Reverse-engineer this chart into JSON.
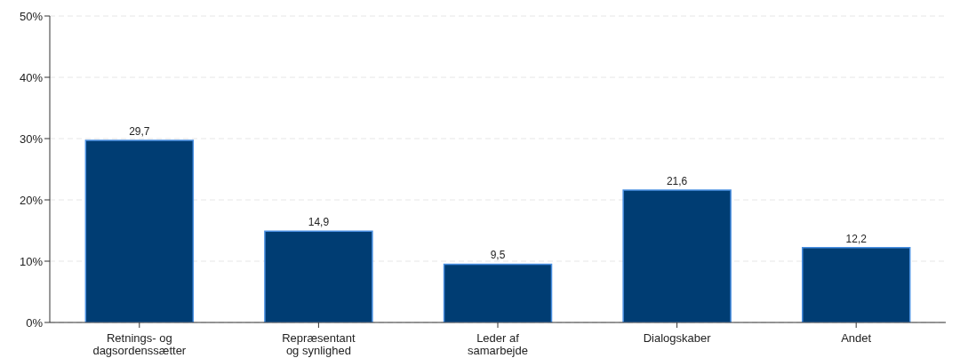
{
  "chart_data": {
    "type": "bar",
    "categories": [
      "Retnings- og dagsordenssætter",
      "Repræsentant og synlighed",
      "Leder af samarbejde",
      "Dialogskaber",
      "Andet"
    ],
    "values": [
      29.7,
      14.9,
      9.5,
      21.6,
      12.2
    ],
    "value_labels": [
      "29,7",
      "14,9",
      "9,5",
      "21,6",
      "12,2"
    ],
    "color": "#003d73",
    "ylim": [
      0,
      50
    ],
    "yticks": [
      {
        "value": 0,
        "label": "0%"
      },
      {
        "value": 10,
        "label": "10%"
      },
      {
        "value": 20,
        "label": "20%"
      },
      {
        "value": 30,
        "label": "30%"
      },
      {
        "value": 40,
        "label": "40%"
      },
      {
        "value": 50,
        "label": "50%"
      }
    ],
    "grid": "y",
    "legend": false
  }
}
